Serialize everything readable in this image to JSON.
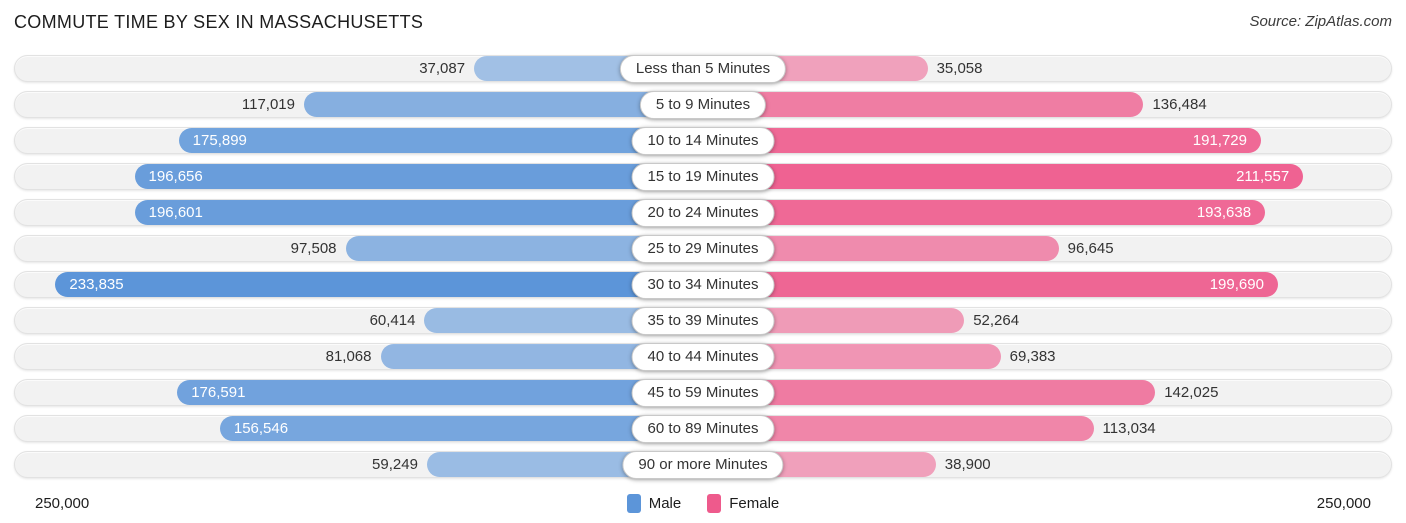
{
  "header": {
    "title": "COMMUTE TIME BY SEX IN MASSACHUSETTS",
    "source": "Source: ZipAtlas.com"
  },
  "axis": {
    "left_label": "250,000",
    "right_label": "250,000"
  },
  "legend": {
    "male_label": "Male",
    "female_label": "Female"
  },
  "colors": {
    "male": "#5c95d9",
    "female": "#ee5a8c",
    "track_bg": "#f2f2f2",
    "track_border": "#e2e2e2",
    "value_text": "#333333",
    "value_text_inside": "#ffffff"
  },
  "chart_data": {
    "type": "bar",
    "variant": "bidirectional-horizontal",
    "title": "COMMUTE TIME BY SEX IN MASSACHUSETTS",
    "axis_max": 250000,
    "axis_max_label": "250,000",
    "legend_position": "bottom",
    "grid": false,
    "categories": [
      "Less than 5 Minutes",
      "5 to 9 Minutes",
      "10 to 14 Minutes",
      "15 to 19 Minutes",
      "20 to 24 Minutes",
      "25 to 29 Minutes",
      "30 to 34 Minutes",
      "35 to 39 Minutes",
      "40 to 44 Minutes",
      "45 to 59 Minutes",
      "60 to 89 Minutes",
      "90 or more Minutes"
    ],
    "series": [
      {
        "name": "Male",
        "values": [
          37087,
          117019,
          175899,
          196656,
          196601,
          97508,
          233835,
          60414,
          81068,
          176591,
          156546,
          59249
        ],
        "value_labels": [
          "37,087",
          "117,019",
          "175,899",
          "196,656",
          "196,601",
          "97,508",
          "233,835",
          "60,414",
          "81,068",
          "176,591",
          "156,546",
          "59,249"
        ]
      },
      {
        "name": "Female",
        "values": [
          35058,
          136484,
          191729,
          211557,
          193638,
          96645,
          199690,
          52264,
          69383,
          142025,
          113034,
          38900
        ],
        "value_labels": [
          "35,058",
          "136,484",
          "191,729",
          "211,557",
          "193,638",
          "96,645",
          "199,690",
          "52,264",
          "69,383",
          "142,025",
          "113,034",
          "38,900"
        ]
      }
    ]
  }
}
